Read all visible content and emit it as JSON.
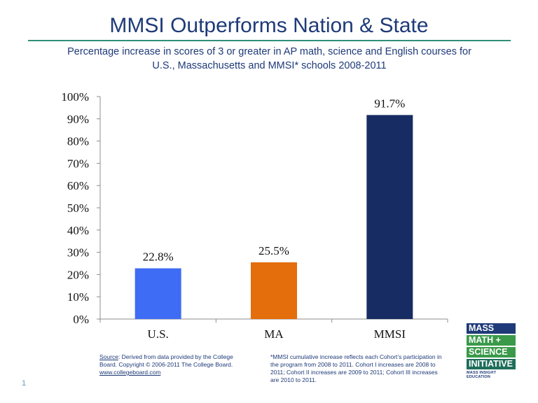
{
  "title": "MMSI Outperforms Nation & State",
  "subtitle_line1": "Percentage  increase in scores of 3 or greater in AP math, science and English courses for",
  "subtitle_line2": "U.S., Massachusetts and MMSI* schools 2008-2011",
  "chart_data": {
    "type": "bar",
    "categories": [
      "U.S.",
      "MA",
      "MMSI"
    ],
    "values": [
      22.8,
      25.5,
      91.7
    ],
    "value_labels": [
      "22.8%",
      "25.5%",
      "91.7%"
    ],
    "colors": [
      "#3f6cf4",
      "#e46d0c",
      "#172c62"
    ],
    "ylim": [
      0,
      100
    ],
    "yticks": [
      0,
      10,
      20,
      30,
      40,
      50,
      60,
      70,
      80,
      90,
      100
    ],
    "ytick_labels": [
      "0%",
      "10%",
      "20%",
      "30%",
      "40%",
      "50%",
      "60%",
      "70%",
      "80%",
      "90%",
      "100%"
    ],
    "grid": false,
    "legend": "none",
    "title": "",
    "xlabel": "",
    "ylabel": ""
  },
  "source_note": {
    "prefix": "Source",
    "line1": ": Derived from data provided by the College",
    "line2": "Board. Copyright © 2006-2011 The College Board.",
    "link": "www.collegeboard.com"
  },
  "mmsi_note": "*MMSI cumulative increase reflects each Cohort’s participation in the program from 2008 to 2011. Cohort I increases are 2008 to 2011; Cohort II increases are 2009 to 2011; Cohort III increases are 2010 to 2011.",
  "page_number": "1",
  "logo": {
    "line1": "MASS",
    "line2": "MATH +",
    "line3": "SCIENCE",
    "line4": "INITIATIVE",
    "sub": "MASS INSIGHT EDUCATION"
  }
}
